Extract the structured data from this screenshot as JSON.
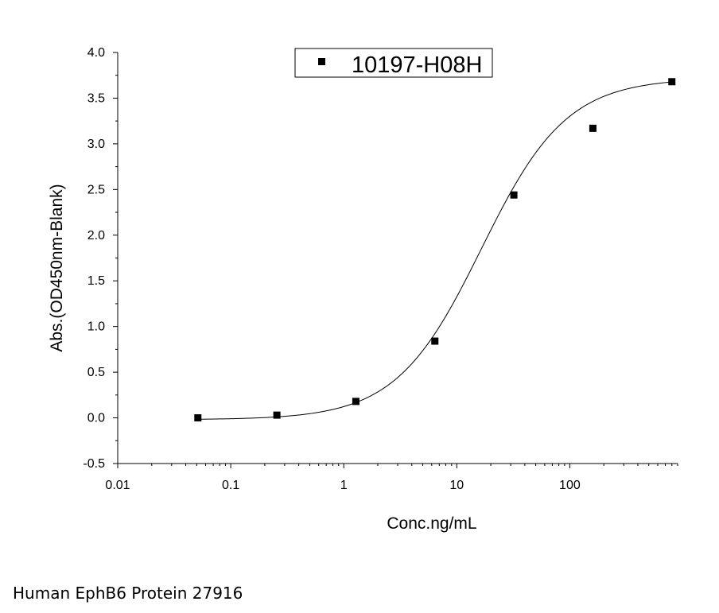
{
  "chart_data": {
    "type": "scatter",
    "xscale": "log",
    "xlim": [
      0.01,
      900
    ],
    "ylim": [
      -0.5,
      4.0
    ],
    "xticks": [
      0.01,
      0.1,
      1,
      10,
      100
    ],
    "xtick_labels": [
      "0.01",
      "0.1",
      "1",
      "10",
      "100"
    ],
    "yticks": [
      -0.5,
      0.0,
      0.5,
      1.0,
      1.5,
      2.0,
      2.5,
      3.0,
      3.5,
      4.0
    ],
    "ytick_labels": [
      "-0.5",
      "0.0",
      "0.5",
      "1.0",
      "1.5",
      "2.0",
      "2.5",
      "3.0",
      "3.5",
      "4.0"
    ],
    "xlabel": "Conc.ng/mL",
    "ylabel": "Abs.(OD450nm-Blank)",
    "grid": false,
    "legend_position": "top-center",
    "series": [
      {
        "name": "10197-H08H",
        "marker": "square",
        "color": "#000000",
        "x": [
          0.0512,
          0.256,
          1.28,
          6.4,
          32,
          160,
          800
        ],
        "y": [
          0.0,
          0.03,
          0.18,
          0.84,
          2.44,
          3.17,
          3.68
        ]
      }
    ],
    "fit_curve": {
      "model": "4PL",
      "bottom": -0.02,
      "top": 3.72,
      "ec50": 16.5,
      "hill": 1.15
    }
  },
  "caption": "Human EphB6 Protein 27916"
}
